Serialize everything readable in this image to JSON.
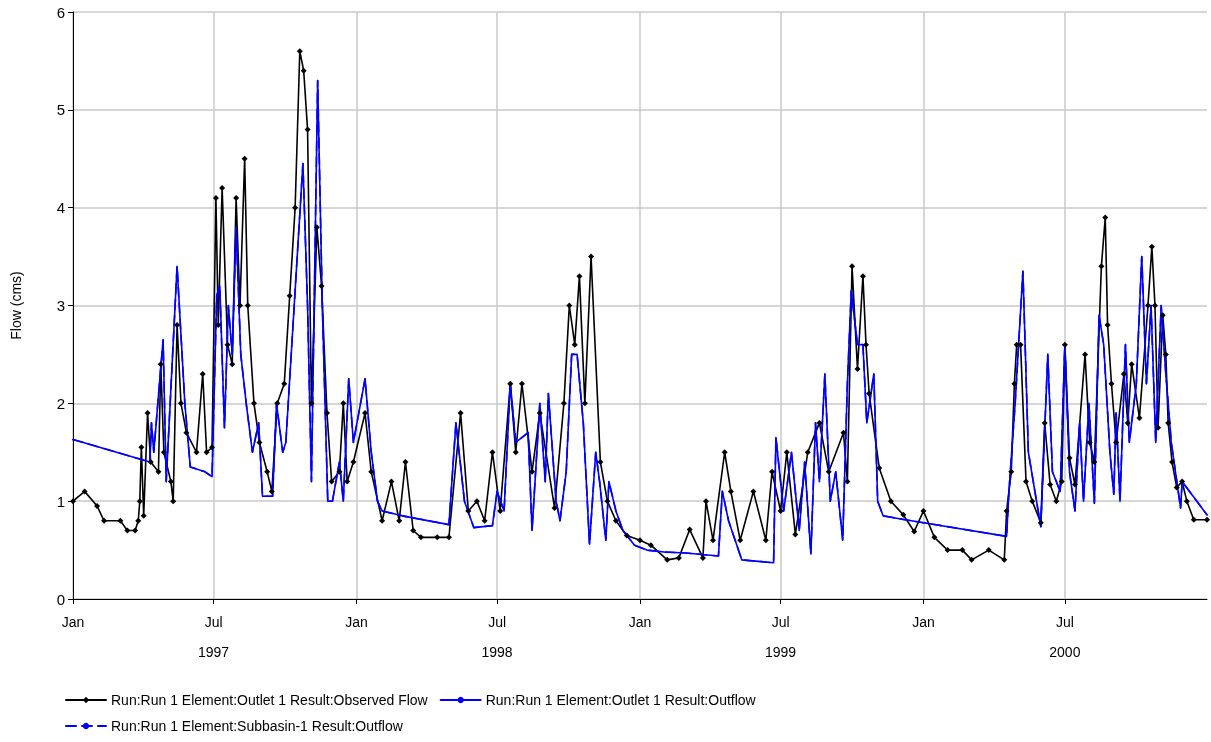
{
  "chart_data": {
    "type": "line",
    "ylabel": "Flow (cms)",
    "xlim": [
      "1997-01-01",
      "2000-12-31"
    ],
    "xticks": [
      {
        "value": "1997-01-01",
        "label": "Jan"
      },
      {
        "value": "1997-07-01",
        "label": "Jul\n1997"
      },
      {
        "value": "1998-01-01",
        "label": "Jan"
      },
      {
        "value": "1998-07-01",
        "label": "Jul\n1998"
      },
      {
        "value": "1999-01-01",
        "label": "Jan"
      },
      {
        "value": "1999-07-01",
        "label": "Jul\n1999"
      },
      {
        "value": "2000-01-01",
        "label": "Jan"
      },
      {
        "value": "2000-07-01",
        "label": "Jul\n2000"
      }
    ],
    "ylim": [
      0,
      6
    ],
    "yticks": [
      0,
      1,
      2,
      3,
      4,
      5,
      6
    ],
    "grid": true,
    "legend": "bottom",
    "series": [
      {
        "name": "Run:Run 1 Element:Outlet 1 Result:Observed Flow",
        "color": "#000000",
        "marker": "diamond",
        "line_style": "solid",
        "x": [
          "1997-01-01",
          "1997-01-16",
          "1997-02-01",
          "1997-02-10",
          "1997-03-03",
          "1997-03-12",
          "1997-03-22",
          "1997-03-26",
          "1997-03-28",
          "1997-03-30",
          "1997-04-02",
          "1997-04-07",
          "1997-04-11",
          "1997-04-21",
          "1997-04-24",
          "1997-04-28",
          "1997-05-07",
          "1997-05-10",
          "1997-05-15",
          "1997-05-20",
          "1997-05-27",
          "1997-06-09",
          "1997-06-17",
          "1997-06-22",
          "1997-06-29",
          "1997-07-04",
          "1997-07-07",
          "1997-07-12",
          "1997-07-19",
          "1997-07-25",
          "1997-07-30",
          "1997-08-04",
          "1997-08-10",
          "1997-08-14",
          "1997-08-22",
          "1997-08-29",
          "1997-09-08",
          "1997-09-14",
          "1997-09-21",
          "1997-09-30",
          "1997-10-07",
          "1997-10-14",
          "1997-10-20",
          "1997-10-25",
          "1997-10-30",
          "1997-11-04",
          "1997-11-11",
          "1997-11-17",
          "1997-11-24",
          "1997-11-30",
          "1997-12-10",
          "1997-12-15",
          "1997-12-20",
          "1997-12-28",
          "1998-01-12",
          "1998-01-20",
          "1998-02-03",
          "1998-02-15",
          "1998-02-25",
          "1998-03-05",
          "1998-03-15",
          "1998-03-25",
          "1998-04-15",
          "1998-04-30",
          "1998-05-15",
          "1998-05-25",
          "1998-06-05",
          "1998-06-15",
          "1998-06-25",
          "1998-07-05",
          "1998-07-18",
          "1998-07-25",
          "1998-08-02",
          "1998-08-15",
          "1998-08-25",
          "1998-09-13",
          "1998-09-25",
          "1998-10-02",
          "1998-10-09",
          "1998-10-15",
          "1998-10-22",
          "1998-10-30",
          "1998-11-11",
          "1998-11-20",
          "1998-12-01",
          "1998-12-15",
          "1999-01-01",
          "1999-01-15",
          "1999-02-05",
          "1999-02-20",
          "1999-03-06",
          "1999-03-23",
          "1999-03-27",
          "1999-04-05",
          "1999-04-20",
          "1999-04-28",
          "1999-05-10",
          "1999-05-27",
          "1999-06-12",
          "1999-06-20",
          "1999-07-01",
          "1999-07-09",
          "1999-07-20",
          "1999-08-05",
          "1999-08-20",
          "1999-09-01",
          "1999-09-20",
          "1999-09-25",
          "1999-10-01",
          "1999-10-08",
          "1999-10-15",
          "1999-10-19",
          "1999-10-23",
          "1999-11-05",
          "1999-11-20",
          "1999-12-06",
          "1999-12-20",
          "2000-01-01",
          "2000-01-15",
          "2000-02-01",
          "2000-02-20",
          "2000-03-03",
          "2000-03-25",
          "2000-04-14",
          "2000-04-17",
          "2000-04-23",
          "2000-04-27",
          "2000-04-30",
          "2000-05-05",
          "2000-05-12",
          "2000-05-20",
          "2000-05-31",
          "2000-06-05",
          "2000-06-12",
          "2000-06-20",
          "2000-06-27",
          "2000-07-01",
          "2000-07-07",
          "2000-07-14",
          "2000-07-27",
          "2000-08-02",
          "2000-08-08",
          "2000-08-17",
          "2000-08-22",
          "2000-08-25",
          "2000-08-30",
          "2000-09-05",
          "2000-09-15",
          "2000-09-20",
          "2000-09-25",
          "2000-10-05",
          "2000-10-16",
          "2000-10-21",
          "2000-10-25",
          "2000-10-29",
          "2000-11-04",
          "2000-11-08",
          "2000-11-11",
          "2000-11-16",
          "2000-11-22",
          "2000-11-29",
          "2000-12-05",
          "2000-12-14",
          "2000-12-31"
        ],
        "values": [
          1.0,
          1.1,
          0.95,
          0.8,
          0.8,
          0.7,
          0.7,
          0.8,
          1.0,
          1.55,
          0.85,
          1.9,
          1.4,
          1.3,
          2.4,
          1.5,
          1.2,
          1.0,
          2.8,
          2.0,
          1.7,
          1.5,
          2.3,
          1.5,
          1.55,
          4.1,
          2.8,
          4.2,
          2.6,
          2.4,
          4.1,
          3.0,
          4.5,
          3.0,
          2.0,
          1.6,
          1.3,
          1.1,
          2.0,
          2.2,
          3.1,
          4.0,
          5.6,
          5.4,
          4.8,
          2.0,
          3.8,
          3.2,
          1.9,
          1.2,
          1.3,
          2.0,
          1.2,
          1.4,
          1.9,
          1.3,
          0.8,
          1.2,
          0.8,
          1.4,
          0.7,
          0.63,
          0.63,
          0.63,
          1.9,
          0.9,
          1.0,
          0.8,
          1.5,
          0.9,
          2.2,
          1.5,
          2.2,
          1.3,
          1.9,
          0.93,
          2.0,
          3.0,
          2.6,
          3.3,
          2.0,
          3.5,
          1.4,
          1.0,
          0.8,
          0.65,
          0.6,
          0.55,
          0.4,
          0.42,
          0.71,
          0.42,
          1.0,
          0.6,
          1.5,
          1.1,
          0.6,
          1.1,
          0.6,
          1.3,
          0.9,
          1.5,
          0.66,
          1.5,
          1.8,
          1.3,
          1.7,
          1.2,
          3.4,
          2.35,
          3.3,
          2.6,
          2.1,
          1.34,
          1.0,
          0.86,
          0.69,
          0.9,
          0.63,
          0.5,
          0.5,
          0.4,
          0.5,
          0.4,
          0.9,
          1.3,
          2.2,
          2.6,
          2.6,
          1.2,
          1.0,
          0.78,
          1.8,
          1.17,
          1.0,
          1.2,
          2.6,
          1.44,
          1.17,
          2.5,
          1.6,
          1.4,
          3.4,
          3.9,
          2.8,
          2.2,
          1.6,
          2.3,
          1.8,
          2.4,
          1.85,
          3.0,
          3.6,
          3.0,
          1.75,
          2.9,
          2.5,
          1.8,
          1.4,
          1.14,
          1.2,
          1.0,
          0.81,
          0.81
        ]
      },
      {
        "name": "Run:Run 1 Element:Outlet 1 Result:Outflow",
        "color": "#0000ff",
        "marker": "none",
        "line_style": "solid",
        "x": [
          "1997-01-01",
          "1997-04-10",
          "1997-04-12",
          "1997-04-15",
          "1997-04-27",
          "1997-05-01",
          "1997-05-15",
          "1997-05-25",
          "1997-06-01",
          "1997-06-20",
          "1997-06-29",
          "1997-07-05",
          "1997-07-09",
          "1997-07-15",
          "1997-07-20",
          "1997-07-25",
          "1997-07-30",
          "1997-08-05",
          "1997-08-12",
          "1997-08-20",
          "1997-08-28",
          "1997-09-02",
          "1997-09-15",
          "1997-09-20",
          "1997-09-28",
          "1997-10-02",
          "1997-10-24",
          "1997-10-30",
          "1997-11-04",
          "1997-11-12",
          "1997-11-18",
          "1997-11-25",
          "1997-12-01",
          "1997-12-10",
          "1997-12-15",
          "1997-12-22",
          "1997-12-28",
          "1998-01-12",
          "1998-01-20",
          "1998-01-28",
          "1998-02-03",
          "1998-03-01",
          "1998-04-30",
          "1998-05-09",
          "1998-05-20",
          "1998-06-01",
          "1998-06-25",
          "1998-07-01",
          "1998-07-10",
          "1998-07-18",
          "1998-07-25",
          "1998-08-10",
          "1998-08-15",
          "1998-08-25",
          "1998-09-01",
          "1998-09-05",
          "1998-09-15",
          "1998-09-20",
          "1998-09-28",
          "1998-10-05",
          "1998-10-12",
          "1998-10-20",
          "1998-10-28",
          "1998-11-05",
          "1998-11-10",
          "1998-11-18",
          "1998-11-22",
          "1998-12-01",
          "1998-12-10",
          "1998-12-25",
          "1999-01-10",
          "1999-02-01",
          "1999-03-01",
          "1999-04-12",
          "1999-04-17",
          "1999-04-25",
          "1999-05-12",
          "1999-06-22",
          "1999-06-25",
          "1999-07-05",
          "1999-07-15",
          "1999-07-25",
          "1999-08-01",
          "1999-08-09",
          "1999-08-15",
          "1999-08-20",
          "1999-08-27",
          "1999-09-03",
          "1999-09-10",
          "1999-09-19",
          "1999-09-25",
          "1999-09-30",
          "1999-10-08",
          "1999-10-15",
          "1999-10-20",
          "1999-10-29",
          "1999-11-03",
          "1999-11-10",
          "1999-12-01",
          "2000-01-01",
          "2000-04-17",
          "2000-04-20",
          "2000-04-28",
          "2000-05-08",
          "2000-05-15",
          "2000-05-31",
          "2000-06-09",
          "2000-06-15",
          "2000-06-25",
          "2000-07-01",
          "2000-07-07",
          "2000-07-14",
          "2000-07-20",
          "2000-07-25",
          "2000-08-01",
          "2000-08-08",
          "2000-08-14",
          "2000-08-20",
          "2000-08-28",
          "2000-09-02",
          "2000-09-05",
          "2000-09-10",
          "2000-09-17",
          "2000-09-22",
          "2000-10-01",
          "2000-10-08",
          "2000-10-14",
          "2000-10-20",
          "2000-10-26",
          "2000-11-02",
          "2000-11-08",
          "2000-11-15",
          "2000-11-27",
          "2000-11-29",
          "2000-12-31"
        ],
        "values": [
          1.63,
          1.4,
          1.8,
          1.5,
          2.65,
          1.2,
          3.4,
          2.0,
          1.35,
          1.3,
          1.25,
          3.1,
          3.2,
          1.75,
          3.0,
          2.5,
          3.8,
          2.5,
          2.0,
          1.5,
          1.8,
          1.05,
          1.05,
          2.0,
          1.5,
          1.6,
          4.45,
          3.0,
          1.2,
          5.3,
          3.0,
          1.0,
          1.0,
          1.4,
          1.0,
          2.25,
          1.6,
          2.25,
          1.5,
          1.0,
          0.9,
          0.85,
          0.76,
          1.8,
          1.0,
          0.73,
          0.75,
          1.1,
          0.9,
          2.2,
          1.6,
          1.7,
          0.7,
          2.0,
          1.2,
          2.1,
          1.0,
          0.8,
          1.3,
          2.5,
          2.5,
          1.8,
          0.56,
          1.5,
          1.2,
          0.6,
          1.2,
          0.9,
          0.7,
          0.55,
          0.5,
          0.48,
          0.47,
          0.44,
          1.1,
          0.8,
          0.4,
          0.37,
          1.65,
          0.9,
          1.5,
          0.7,
          1.4,
          0.46,
          1.8,
          1.2,
          2.3,
          1.0,
          1.3,
          0.6,
          2.2,
          3.15,
          2.6,
          2.6,
          1.8,
          2.3,
          1.0,
          0.85,
          0.82,
          0.78,
          0.64,
          1.1,
          2.0,
          3.35,
          1.5,
          0.74,
          2.5,
          1.3,
          1.1,
          2.6,
          1.3,
          0.9,
          1.8,
          1.0,
          2.0,
          0.98,
          2.9,
          2.6,
          1.5,
          1.07,
          1.9,
          1.0,
          2.6,
          1.6,
          2.2,
          3.5,
          2.2,
          3.0,
          1.6,
          3.0,
          2.3,
          1.6,
          0.93,
          1.2,
          0.86
        ]
      },
      {
        "name": "Run:Run 1 Element:Subbasin-1 Result:Outflow",
        "color": "#0000ff",
        "marker": "none",
        "line_style": "dashed",
        "x": [
          "1997-01-01",
          "1997-04-10",
          "1997-04-12",
          "1997-04-15",
          "1997-04-27",
          "1997-05-01",
          "1997-05-15",
          "1997-05-25",
          "1997-06-01",
          "1997-06-20",
          "1997-06-29",
          "1997-07-05",
          "1997-07-09",
          "1997-07-15",
          "1997-07-20",
          "1997-07-25",
          "1997-07-30",
          "1997-08-05",
          "1997-08-12",
          "1997-08-20",
          "1997-08-28",
          "1997-09-02",
          "1997-09-15",
          "1997-09-20",
          "1997-09-28",
          "1997-10-02",
          "1997-10-24",
          "1997-10-30",
          "1997-11-04",
          "1997-11-12",
          "1997-11-18",
          "1997-11-25",
          "1997-12-01",
          "1997-12-10",
          "1997-12-15",
          "1997-12-22",
          "1997-12-28",
          "1998-01-12",
          "1998-01-20",
          "1998-01-28",
          "1998-02-03",
          "1998-03-01",
          "1998-04-30",
          "1998-05-09",
          "1998-05-20",
          "1998-06-01",
          "1998-06-25",
          "1998-07-01",
          "1998-07-10",
          "1998-07-18",
          "1998-07-25",
          "1998-08-10",
          "1998-08-15",
          "1998-08-25",
          "1998-09-01",
          "1998-09-05",
          "1998-09-15",
          "1998-09-20",
          "1998-09-28",
          "1998-10-05",
          "1998-10-12",
          "1998-10-20",
          "1998-10-28",
          "1998-11-05",
          "1998-11-10",
          "1998-11-18",
          "1998-11-22",
          "1998-12-01",
          "1998-12-10",
          "1998-12-25",
          "1999-01-10",
          "1999-02-01",
          "1999-03-01",
          "1999-04-12",
          "1999-04-17",
          "1999-04-25",
          "1999-05-12",
          "1999-06-22",
          "1999-06-25",
          "1999-07-05",
          "1999-07-15",
          "1999-07-25",
          "1999-08-01",
          "1999-08-09",
          "1999-08-15",
          "1999-08-20",
          "1999-08-27",
          "1999-09-03",
          "1999-09-10",
          "1999-09-19",
          "1999-09-25",
          "1999-09-30",
          "1999-10-08",
          "1999-10-15",
          "1999-10-20",
          "1999-10-29",
          "1999-11-03",
          "1999-11-10",
          "1999-12-01",
          "2000-01-01",
          "2000-04-17",
          "2000-04-20",
          "2000-04-28",
          "2000-05-08",
          "2000-05-15",
          "2000-05-31",
          "2000-06-09",
          "2000-06-15",
          "2000-06-25",
          "2000-07-01",
          "2000-07-07",
          "2000-07-14",
          "2000-07-20",
          "2000-07-25",
          "2000-08-01",
          "2000-08-08",
          "2000-08-14",
          "2000-08-20",
          "2000-08-28",
          "2000-09-02",
          "2000-09-05",
          "2000-09-10",
          "2000-09-17",
          "2000-09-22",
          "2000-10-01",
          "2000-10-08",
          "2000-10-14",
          "2000-10-20",
          "2000-10-26",
          "2000-11-02",
          "2000-11-08",
          "2000-11-15",
          "2000-11-27",
          "2000-11-29",
          "2000-12-31"
        ],
        "values": [
          1.63,
          1.4,
          1.8,
          1.5,
          2.65,
          1.2,
          3.4,
          2.0,
          1.35,
          1.3,
          1.25,
          3.1,
          3.2,
          1.75,
          3.0,
          2.5,
          3.8,
          2.5,
          2.0,
          1.5,
          1.8,
          1.05,
          1.05,
          2.0,
          1.5,
          1.6,
          4.45,
          3.0,
          1.2,
          5.3,
          3.0,
          1.0,
          1.0,
          1.4,
          1.0,
          2.25,
          1.6,
          2.25,
          1.5,
          1.0,
          0.9,
          0.85,
          0.76,
          1.8,
          1.0,
          0.73,
          0.75,
          1.1,
          0.9,
          2.2,
          1.6,
          1.7,
          0.7,
          2.0,
          1.2,
          2.1,
          1.0,
          0.8,
          1.3,
          2.5,
          2.5,
          1.8,
          0.56,
          1.5,
          1.2,
          0.6,
          1.2,
          0.9,
          0.7,
          0.55,
          0.5,
          0.48,
          0.47,
          0.44,
          1.1,
          0.8,
          0.4,
          0.37,
          1.65,
          0.9,
          1.5,
          0.7,
          1.4,
          0.46,
          1.8,
          1.2,
          2.3,
          1.0,
          1.3,
          0.6,
          2.2,
          3.15,
          2.6,
          2.6,
          1.8,
          2.3,
          1.0,
          0.85,
          0.82,
          0.78,
          0.64,
          1.1,
          2.0,
          3.35,
          1.5,
          0.74,
          2.5,
          1.3,
          1.1,
          2.6,
          1.3,
          0.9,
          1.8,
          1.0,
          2.0,
          0.98,
          2.9,
          2.6,
          1.5,
          1.07,
          1.9,
          1.0,
          2.6,
          1.6,
          2.2,
          3.5,
          2.2,
          3.0,
          1.6,
          3.0,
          2.3,
          1.6,
          0.93,
          1.2,
          0.86
        ]
      }
    ]
  }
}
